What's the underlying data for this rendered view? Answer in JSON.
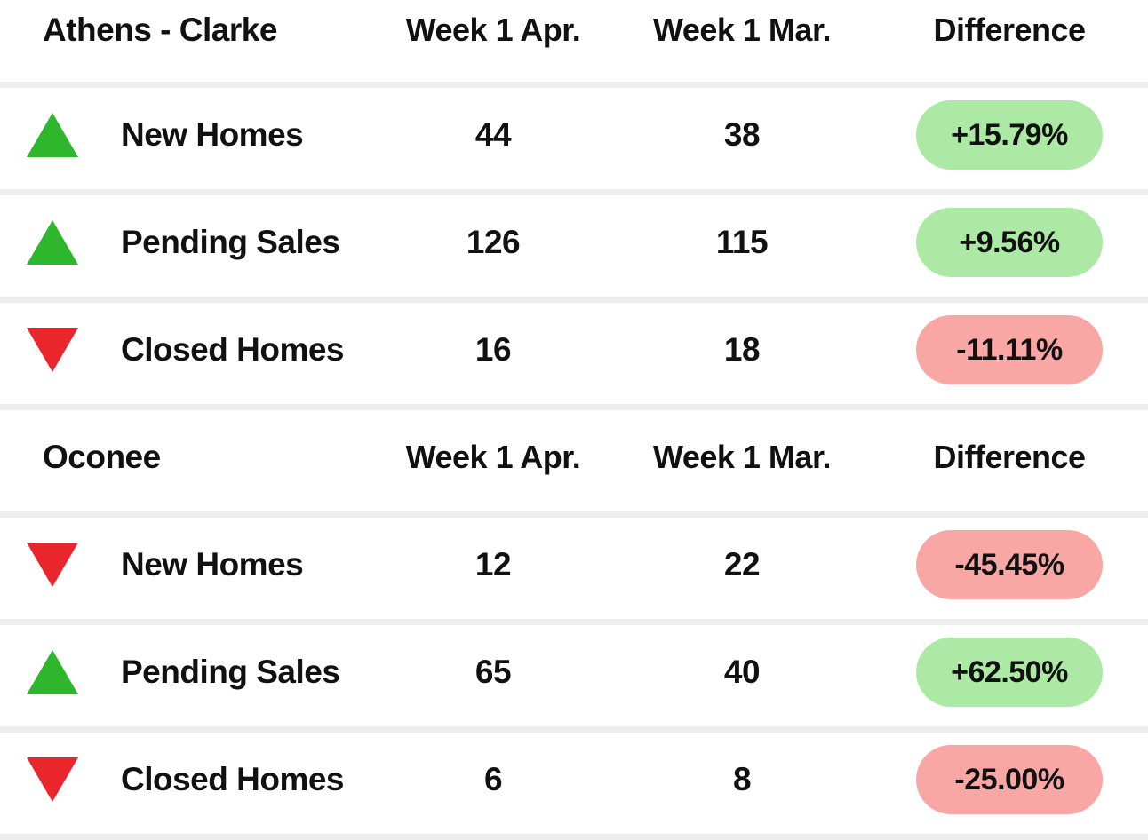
{
  "colors": {
    "green-tri": "#2eb62c",
    "red-tri": "#e9262c",
    "green-pill": "#ace9a5",
    "red-pill": "#f9a7a5",
    "divider": "#ededed",
    "text": "#111111"
  },
  "chart_data": [
    {
      "type": "table",
      "title": "Athens - Clarke",
      "columns": [
        "Week 1 Apr.",
        "Week 1 Mar.",
        "Difference"
      ],
      "rows": [
        {
          "metric": "New Homes",
          "trend": "up",
          "week1_apr": 44,
          "week1_mar": 38,
          "difference": "+15.79%"
        },
        {
          "metric": "Pending Sales",
          "trend": "up",
          "week1_apr": 126,
          "week1_mar": 115,
          "difference": "+9.56%"
        },
        {
          "metric": "Closed Homes",
          "trend": "down",
          "week1_apr": 16,
          "week1_mar": 18,
          "difference": "-11.11%"
        }
      ]
    },
    {
      "type": "table",
      "title": "Oconee",
      "columns": [
        "Week 1 Apr.",
        "Week 1 Mar.",
        "Difference"
      ],
      "rows": [
        {
          "metric": "New Homes",
          "trend": "down",
          "week1_apr": 12,
          "week1_mar": 22,
          "difference": "-45.45%"
        },
        {
          "metric": "Pending Sales",
          "trend": "up",
          "week1_apr": 65,
          "week1_mar": 40,
          "difference": "+62.50%"
        },
        {
          "metric": "Closed Homes",
          "trend": "down",
          "week1_apr": 6,
          "week1_mar": 8,
          "difference": "-25.00%"
        }
      ]
    }
  ]
}
